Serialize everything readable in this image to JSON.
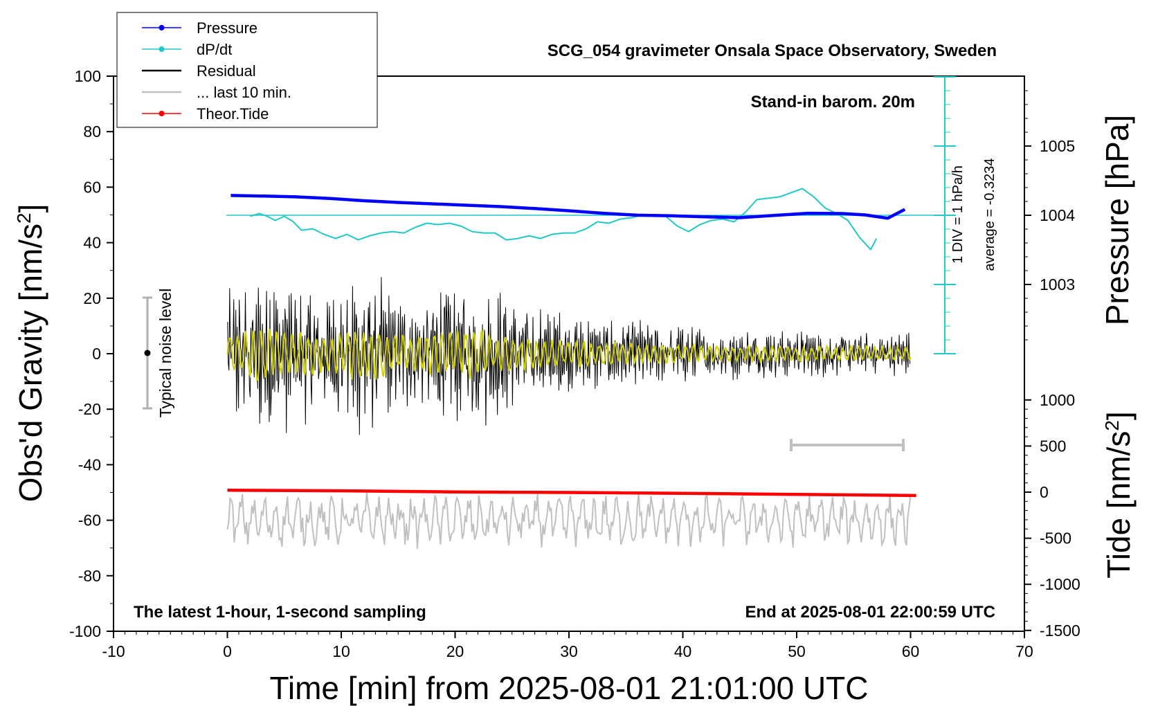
{
  "chart_data": {
    "type": "line",
    "title": "SCG_054 gravimeter Onsala Space Observatory, Sweden",
    "xlabel": "Time [min] from 2025-08-01 21:01:00 UTC",
    "ylabel": "Obs'd Gravity [nm/s",
    "ylabel_sup": "2",
    "ylabel_close": "]",
    "y2label": "Pressure [hPa]",
    "y3label": "Tide [nm/s",
    "y3label_sup": "2",
    "y3label_close": "]",
    "xlim": [
      -10,
      70
    ],
    "ylim": [
      -100,
      100
    ],
    "x_ticks": [
      -10,
      0,
      10,
      20,
      30,
      40,
      50,
      60,
      70
    ],
    "y_ticks": [
      100,
      80,
      60,
      40,
      20,
      0,
      -20,
      -40,
      -60,
      -80,
      -100
    ],
    "pressure_ticks": [
      1005,
      1004,
      1003
    ],
    "tide_ticks": [
      1000,
      500,
      0,
      -500,
      -1000,
      -1500
    ],
    "legend": [
      {
        "name": "Pressure",
        "color": "#0000ff",
        "marker": true
      },
      {
        "name": "dP/dt",
        "color": "#20c8c8",
        "marker": true
      },
      {
        "name": "Residual",
        "color": "#000000",
        "marker": false
      },
      {
        "name": "... last 10 min.",
        "color": "#c0c0c0",
        "marker": false
      },
      {
        "name": "Theor.Tide",
        "color": "#ff0000",
        "marker": true
      }
    ],
    "annotations": {
      "barometer": "Stand-in barom. 20m",
      "sampling": "The latest 1-hour, 1-second sampling",
      "end_time": "End at 2025-08-01 22:00:59 UTC",
      "div_label": "1 DIV = 1 hPa/h",
      "average_label": "average = -0.3234",
      "noise_label": "Typical noise level"
    },
    "noise_level": {
      "x": -7,
      "center": 0,
      "half_range": 20
    },
    "last10_bar": {
      "x_start": 50,
      "x_end": 60,
      "y": -34
    },
    "series": [
      {
        "name": "Pressure",
        "unit": "plotted in gravity-axis units",
        "x": [
          0.3,
          3,
          6,
          9,
          12,
          15,
          18,
          21,
          24,
          27,
          30,
          33,
          36,
          39,
          42,
          45,
          48,
          51,
          54,
          56,
          58,
          59.5
        ],
        "values": [
          57,
          56.8,
          56.5,
          55.9,
          55.1,
          54.5,
          54,
          53.5,
          53,
          52.3,
          51.5,
          50.6,
          49.9,
          49.7,
          49.3,
          49,
          49.8,
          50.6,
          50.5,
          50,
          48.8,
          52
        ]
      },
      {
        "name": "dP/dt",
        "unit": "plotted in gravity-axis units",
        "x": [
          2,
          2.8,
          3.5,
          4.2,
          5,
          5.8,
          6.5,
          7.5,
          8.5,
          9.5,
          10.5,
          11.5,
          12.5,
          13.5,
          14.5,
          15.5,
          16.5,
          17.5,
          18.5,
          19.5,
          20.5,
          21.5,
          22.5,
          23.5,
          24.5,
          25.5,
          26.5,
          27.5,
          28.5,
          29.5,
          30.5,
          31.5,
          32.5,
          33.5,
          34.5,
          35.5,
          36.5,
          37.5,
          38.5,
          39.5,
          40.5,
          41.5,
          42.5,
          43.5,
          44.5,
          45.5,
          46.5,
          47.5,
          48.5,
          49.5,
          50.5,
          51.5,
          52.5,
          53.5,
          54.5,
          55.5,
          56.5,
          57
        ],
        "values": [
          49.5,
          50.5,
          49.5,
          48,
          49.5,
          47.5,
          44.5,
          45,
          43,
          41.5,
          43,
          41,
          42.5,
          43.5,
          44,
          43.5,
          45.5,
          47,
          46.5,
          47,
          46,
          44,
          43.5,
          43.5,
          41,
          41.5,
          42.5,
          41.5,
          43,
          43.5,
          43.5,
          45,
          47.5,
          47,
          48.5,
          49,
          50,
          50,
          49.5,
          46,
          44,
          46.5,
          48,
          48.5,
          47.5,
          51,
          55.5,
          56,
          56.5,
          58,
          59.5,
          56.5,
          52.5,
          50.5,
          48,
          42,
          37.5,
          41.5
        ]
      },
      {
        "name": "Residual",
        "x_range": [
          0,
          60
        ],
        "amplitude_envelope": [
          {
            "x": 0,
            "amp": 24
          },
          {
            "x": 3,
            "amp": 33
          },
          {
            "x": 9,
            "amp": 22
          },
          {
            "x": 12,
            "amp": 36
          },
          {
            "x": 15,
            "amp": 20
          },
          {
            "x": 21,
            "amp": 30
          },
          {
            "x": 27,
            "amp": 17
          },
          {
            "x": 33,
            "amp": 14
          },
          {
            "x": 40,
            "amp": 11
          },
          {
            "x": 50,
            "amp": 9
          },
          {
            "x": 60,
            "amp": 8
          }
        ]
      },
      {
        "name": "Residual smoothed",
        "color": "#d0d000",
        "x_range": [
          0,
          60
        ]
      },
      {
        "name": "... last 10 min.",
        "center": -60,
        "amplitude": 8,
        "x_range": [
          0,
          60
        ]
      },
      {
        "name": "Theor.Tide",
        "x": [
          0,
          10,
          20,
          30,
          40,
          50,
          60.5
        ],
        "values": [
          -49.2,
          -49.4,
          -49.8,
          -50,
          -50.3,
          -50.7,
          -51.1
        ]
      }
    ]
  }
}
